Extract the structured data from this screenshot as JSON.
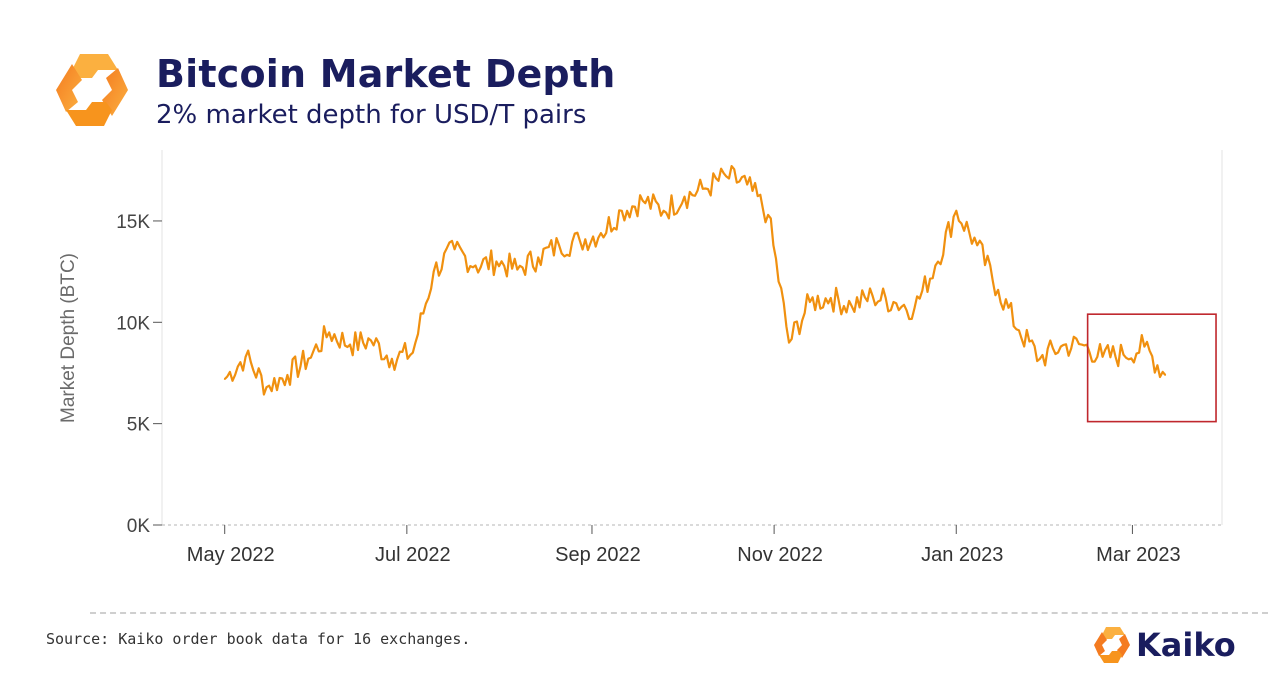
{
  "header": {
    "title": "Bitcoin Market Depth",
    "subtitle": "2% market depth for USD/T pairs"
  },
  "footer": {
    "source": "Source: Kaiko order book data for 16 exchanges.",
    "brand": "Kaiko"
  },
  "colors": {
    "line": "#f0900f",
    "highlight": "#c0272d",
    "title": "#1a1d5e",
    "logo_orange": "#f7941d"
  },
  "chart_data": {
    "type": "line",
    "title": "Bitcoin Market Depth",
    "subtitle": "2% market depth for USD/T pairs",
    "xlabel": "",
    "ylabel": "Market Depth (BTC)",
    "ylim": [
      0,
      18500
    ],
    "y_ticks": [
      0,
      5000,
      10000,
      15000
    ],
    "y_tick_labels": [
      "0K",
      "5K",
      "10K",
      "15K"
    ],
    "x_ticks": [
      "2022-05-01",
      "2022-07-01",
      "2022-09-01",
      "2022-11-01",
      "2023-01-01",
      "2023-03-01"
    ],
    "x_tick_labels": [
      "May 2022",
      "Jul 2022",
      "Sep 2022",
      "Nov 2022",
      "Jan 2023",
      "Mar 2023"
    ],
    "x_range": [
      "2022-04-10",
      "2023-03-31"
    ],
    "series": [
      {
        "name": "2% market depth",
        "x": [
          "2022-05-01",
          "2022-05-08",
          "2022-05-15",
          "2022-05-22",
          "2022-05-29",
          "2022-06-05",
          "2022-06-12",
          "2022-06-19",
          "2022-06-26",
          "2022-07-03",
          "2022-07-10",
          "2022-07-17",
          "2022-07-24",
          "2022-07-31",
          "2022-08-07",
          "2022-08-14",
          "2022-08-21",
          "2022-08-28",
          "2022-09-04",
          "2022-09-11",
          "2022-09-18",
          "2022-09-25",
          "2022-10-02",
          "2022-10-09",
          "2022-10-16",
          "2022-10-23",
          "2022-10-30",
          "2022-11-06",
          "2022-11-13",
          "2022-11-20",
          "2022-11-27",
          "2022-12-04",
          "2022-12-11",
          "2022-12-18",
          "2022-12-25",
          "2023-01-01",
          "2023-01-08",
          "2023-01-15",
          "2023-01-22",
          "2023-01-29",
          "2023-02-05",
          "2023-02-12",
          "2023-02-19",
          "2023-02-26",
          "2023-03-05",
          "2023-03-12"
        ],
        "values": [
          7200,
          8300,
          6800,
          7400,
          8200,
          9500,
          8900,
          9100,
          8200,
          8500,
          12500,
          13600,
          12800,
          13000,
          12600,
          13200,
          13800,
          14000,
          14400,
          15500,
          16000,
          15500,
          16200,
          16600,
          17200,
          16800,
          15300,
          9000,
          11000,
          11200,
          10800,
          11300,
          11000,
          10700,
          12800,
          15500,
          13800,
          11600,
          9600,
          8200,
          8800,
          8900,
          8300,
          8400,
          8800,
          7400
        ]
      }
    ],
    "annotations": [
      {
        "type": "rectangle",
        "label": "",
        "x_range": [
          "2023-02-14",
          "2023-03-29"
        ],
        "y_range": [
          5100,
          10400
        ]
      }
    ]
  }
}
